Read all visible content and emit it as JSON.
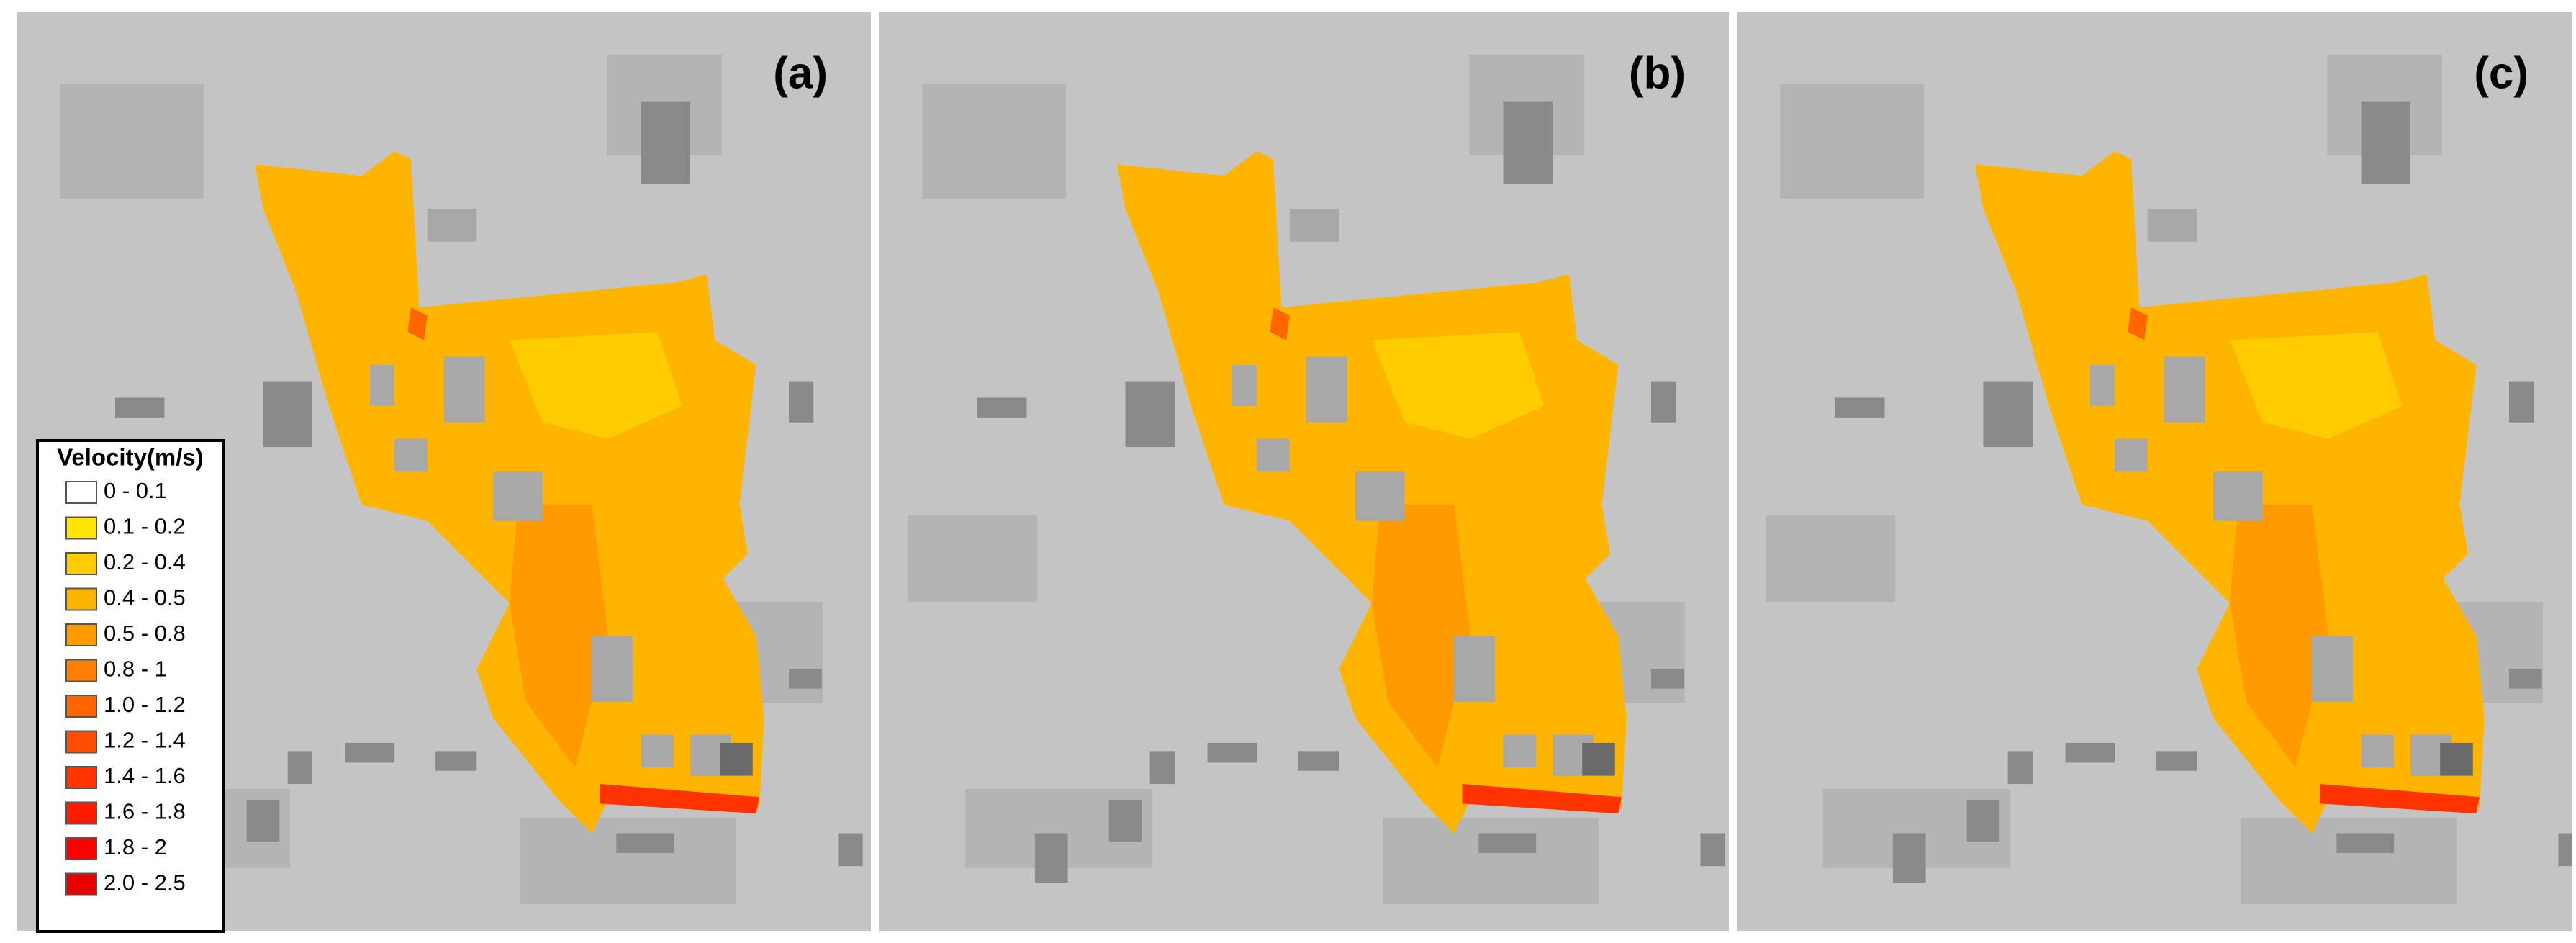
{
  "panels": [
    {
      "label": "(a)"
    },
    {
      "label": "(b)"
    },
    {
      "label": "(c)"
    }
  ],
  "legend": {
    "title": "Velocity(m/s)",
    "items": [
      {
        "label": "0 - 0.1",
        "color": "#ffffff"
      },
      {
        "label": "0.1 - 0.2",
        "color": "#ffe600"
      },
      {
        "label": "0.2 - 0.4",
        "color": "#ffcc00"
      },
      {
        "label": "0.4 - 0.5",
        "color": "#ffb400"
      },
      {
        "label": "0.5 - 0.8",
        "color": "#ff9a00"
      },
      {
        "label": "0.8 - 1",
        "color": "#ff8000"
      },
      {
        "label": "1.0 - 1.2",
        "color": "#ff6600"
      },
      {
        "label": "1.2 - 1.4",
        "color": "#ff4d00"
      },
      {
        "label": "1.4 - 1.6",
        "color": "#ff3300"
      },
      {
        "label": "1.6 - 1.8",
        "color": "#ff1a00"
      },
      {
        "label": "1.8 - 2",
        "color": "#ff0000"
      },
      {
        "label": "2.0 - 2.5",
        "color": "#e60000"
      }
    ]
  }
}
